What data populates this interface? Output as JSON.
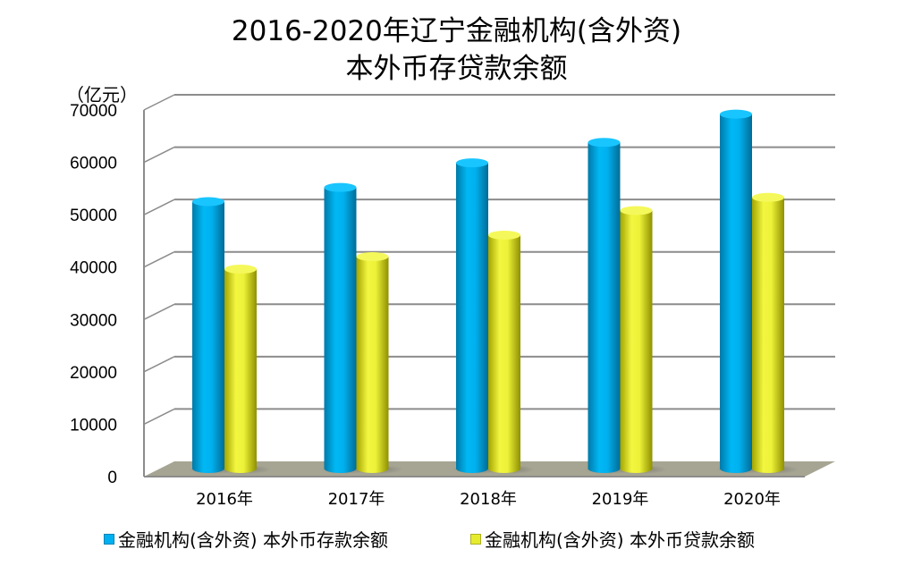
{
  "title": {
    "line1": "2016-2020年辽宁金融机构(含外资)",
    "line2": "本外币存贷款余额"
  },
  "unit_label": "（亿元）",
  "colors": {
    "deposit": "#00b0f0",
    "deposit_dark": "#0079a8",
    "loan": "#f0f53c",
    "loan_dark": "#a8a800",
    "floor": "#a6a593",
    "grid": "#8c8c8c"
  },
  "legend": {
    "items": [
      {
        "label": "金融机构(含外资) 本外币存款余额",
        "color": "#00b0f0"
      },
      {
        "label": "金融机构(含外资) 本外币贷款余额",
        "color": "#e6eb2d"
      }
    ]
  },
  "chart_data": {
    "type": "bar",
    "style": "3d-cylinder",
    "title": "2016-2020年辽宁金融机构(含外资)本外币存贷款余额",
    "xlabel": "",
    "ylabel": "（亿元）",
    "categories": [
      "2016年",
      "2017年",
      "2018年",
      "2019年",
      "2020年"
    ],
    "series": [
      {
        "name": "金融机构(含外资) 本外币存款余额",
        "values": [
          49600,
          52300,
          57000,
          60900,
          66300
        ]
      },
      {
        "name": "金融机构(含外资) 本外币贷款余额",
        "values": [
          36700,
          39100,
          43200,
          47900,
          50400
        ]
      }
    ],
    "ylim": [
      0,
      70000
    ],
    "yticks": [
      0,
      10000,
      20000,
      30000,
      40000,
      50000,
      60000,
      70000
    ],
    "ytick_labels": [
      "0",
      "10000",
      "20000",
      "30000",
      "40000",
      "50000",
      "60000",
      "70000"
    ],
    "grid": true,
    "legend_position": "bottom"
  }
}
